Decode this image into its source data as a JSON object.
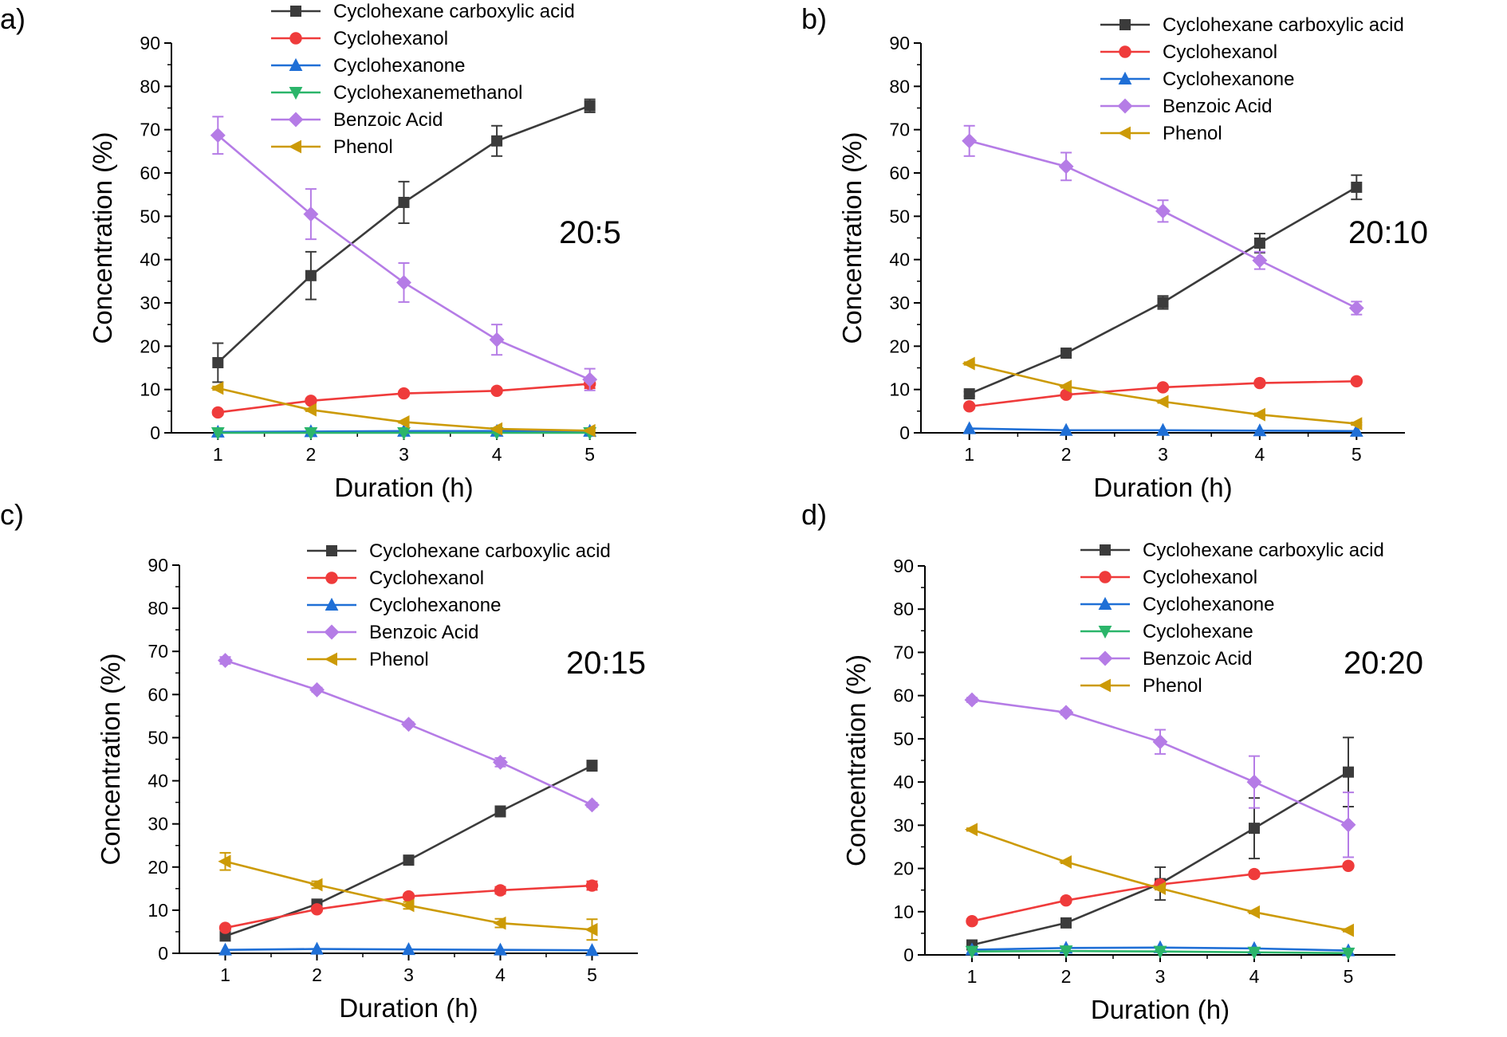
{
  "figure": {
    "series_styles": {
      "Cyclohexane carboxylic acid": {
        "color": "#3b3b3b",
        "marker": "square"
      },
      "Cyclohexanol": {
        "color": "#ef3b3b",
        "marker": "circle"
      },
      "Cyclohexanone": {
        "color": "#1f6fd6",
        "marker": "triangle-up"
      },
      "Cyclohexanemethanol": {
        "color": "#2bb56a",
        "marker": "triangle-down"
      },
      "Cyclohexane": {
        "color": "#2bb56a",
        "marker": "triangle-down"
      },
      "Benzoic Acid": {
        "color": "#b57ce6",
        "marker": "diamond"
      },
      "Phenol": {
        "color": "#cc9a06",
        "marker": "triangle-left"
      }
    }
  },
  "chart_data": [
    {
      "panel": "a)",
      "ratio_label": "20:5",
      "type": "line",
      "xlabel": "Duration (h)",
      "ylabel": "Concentration (%)",
      "xlim": [
        0.5,
        5.5
      ],
      "ylim": [
        0,
        90
      ],
      "x_ticks": [
        1,
        2,
        3,
        4,
        5
      ],
      "y_ticks": [
        0,
        10,
        20,
        30,
        40,
        50,
        60,
        70,
        80,
        90
      ],
      "legend_position": "top-center",
      "x": [
        1,
        2,
        3,
        4,
        5
      ],
      "series": [
        {
          "name": "Cyclohexane carboxylic acid",
          "values": [
            16.2,
            36.3,
            53.2,
            67.4,
            75.5
          ],
          "errors": [
            4.5,
            5.5,
            4.8,
            3.5,
            1.5
          ]
        },
        {
          "name": "Cyclohexanol",
          "values": [
            4.7,
            7.4,
            9.1,
            9.7,
            11.3
          ],
          "errors": [
            0.5,
            0.5,
            0.5,
            0.5,
            1.0
          ]
        },
        {
          "name": "Cyclohexanone",
          "values": [
            0.2,
            0.3,
            0.4,
            0.4,
            0.4
          ],
          "errors": [
            0,
            0,
            0,
            0,
            0
          ]
        },
        {
          "name": "Cyclohexanemethanol",
          "values": [
            0,
            0,
            0,
            0,
            0
          ],
          "errors": [
            0,
            0,
            0,
            0,
            0
          ]
        },
        {
          "name": "Benzoic Acid",
          "values": [
            68.7,
            50.5,
            34.7,
            21.5,
            12.3
          ],
          "errors": [
            4.3,
            5.8,
            4.5,
            3.5,
            2.5
          ]
        },
        {
          "name": "Phenol",
          "values": [
            10.3,
            5.3,
            2.5,
            0.9,
            0.5
          ],
          "errors": [
            0.4,
            0.3,
            0.2,
            0.1,
            0.1
          ]
        }
      ]
    },
    {
      "panel": "b)",
      "ratio_label": "20:10",
      "type": "line",
      "xlabel": "Duration (h)",
      "ylabel": "Concentration (%)",
      "xlim": [
        0.5,
        5.5
      ],
      "ylim": [
        0,
        90
      ],
      "x_ticks": [
        1,
        2,
        3,
        4,
        5
      ],
      "y_ticks": [
        0,
        10,
        20,
        30,
        40,
        50,
        60,
        70,
        80,
        90
      ],
      "legend_position": "top-right",
      "x": [
        1,
        2,
        3,
        4,
        5
      ],
      "series": [
        {
          "name": "Cyclohexane carboxylic acid",
          "values": [
            9.0,
            18.4,
            30.1,
            43.8,
            56.7
          ],
          "errors": [
            0.5,
            0.5,
            1.5,
            2.2,
            2.8
          ]
        },
        {
          "name": "Cyclohexanol",
          "values": [
            6.1,
            8.8,
            10.5,
            11.5,
            11.9
          ],
          "errors": [
            0.3,
            0.3,
            0.3,
            0.3,
            0.3
          ]
        },
        {
          "name": "Cyclohexanone",
          "values": [
            1.0,
            0.6,
            0.6,
            0.5,
            0.4
          ],
          "errors": [
            0,
            0,
            0,
            0,
            0
          ]
        },
        {
          "name": "Benzoic Acid",
          "values": [
            67.4,
            61.5,
            51.2,
            39.8,
            28.8
          ],
          "errors": [
            3.5,
            3.2,
            2.5,
            2.0,
            1.5
          ]
        },
        {
          "name": "Phenol",
          "values": [
            16.0,
            10.7,
            7.2,
            4.2,
            2.1
          ],
          "errors": [
            0.3,
            0.3,
            0.3,
            0.3,
            0.3
          ]
        }
      ]
    },
    {
      "panel": "c)",
      "ratio_label": "20:15",
      "type": "line",
      "xlabel": "Duration (h)",
      "ylabel": "Concentration (%)",
      "xlim": [
        0.5,
        5.5
      ],
      "ylim": [
        0,
        90
      ],
      "x_ticks": [
        1,
        2,
        3,
        4,
        5
      ],
      "y_ticks": [
        0,
        10,
        20,
        30,
        40,
        50,
        60,
        70,
        80,
        90
      ],
      "legend_position": "top-right",
      "x": [
        1,
        2,
        3,
        4,
        5
      ],
      "series": [
        {
          "name": "Cyclohexane carboxylic acid",
          "values": [
            4.0,
            11.4,
            21.6,
            32.9,
            43.5
          ],
          "errors": [
            0.5,
            0.5,
            0.5,
            1.2,
            1.2
          ]
        },
        {
          "name": "Cyclohexanol",
          "values": [
            5.9,
            10.2,
            13.2,
            14.6,
            15.7
          ],
          "errors": [
            0.5,
            0.5,
            0.5,
            0.8,
            1.0
          ]
        },
        {
          "name": "Cyclohexanone",
          "values": [
            0.8,
            1.0,
            0.9,
            0.8,
            0.7
          ],
          "errors": [
            0,
            0,
            0,
            0,
            0
          ]
        },
        {
          "name": "Benzoic Acid",
          "values": [
            67.9,
            61.1,
            53.1,
            44.3,
            34.4
          ],
          "errors": [
            0.8,
            0.5,
            0.5,
            1.0,
            0.5
          ]
        },
        {
          "name": "Phenol",
          "values": [
            21.3,
            15.9,
            11.1,
            7.0,
            5.5
          ],
          "errors": [
            2.0,
            0.8,
            0.8,
            1.0,
            2.4
          ]
        }
      ]
    },
    {
      "panel": "d)",
      "ratio_label": "20:20",
      "type": "line",
      "xlabel": "Duration (h)",
      "ylabel": "Concentration (%)",
      "xlim": [
        0.5,
        5.5
      ],
      "ylim": [
        0,
        90
      ],
      "x_ticks": [
        1,
        2,
        3,
        4,
        5
      ],
      "y_ticks": [
        0,
        10,
        20,
        30,
        40,
        50,
        60,
        70,
        80,
        90
      ],
      "legend_position": "top-right",
      "x": [
        1,
        2,
        3,
        4,
        5
      ],
      "series": [
        {
          "name": "Cyclohexane carboxylic acid",
          "values": [
            2.3,
            7.4,
            16.5,
            29.3,
            42.3
          ],
          "errors": [
            0.5,
            0.5,
            3.8,
            7.0,
            8.0
          ]
        },
        {
          "name": "Cyclohexanol",
          "values": [
            7.8,
            12.6,
            16.3,
            18.7,
            20.6
          ],
          "errors": [
            0.5,
            0.5,
            0.5,
            0.5,
            0.5
          ]
        },
        {
          "name": "Cyclohexanone",
          "values": [
            1.2,
            1.6,
            1.7,
            1.5,
            1.0
          ],
          "errors": [
            0,
            0,
            0,
            0,
            0
          ]
        },
        {
          "name": "Cyclohexane",
          "values": [
            0.8,
            0.9,
            0.8,
            0.6,
            0.4
          ],
          "errors": [
            0,
            0,
            0,
            0,
            0
          ]
        },
        {
          "name": "Benzoic Acid",
          "values": [
            59.0,
            56.1,
            49.3,
            40.0,
            30.1
          ],
          "errors": [
            0.5,
            0.5,
            2.8,
            6.0,
            7.5
          ]
        },
        {
          "name": "Phenol",
          "values": [
            29.0,
            21.5,
            15.4,
            9.9,
            5.7
          ],
          "errors": [
            0.3,
            0.3,
            0.3,
            0.3,
            0.3
          ]
        }
      ]
    }
  ]
}
